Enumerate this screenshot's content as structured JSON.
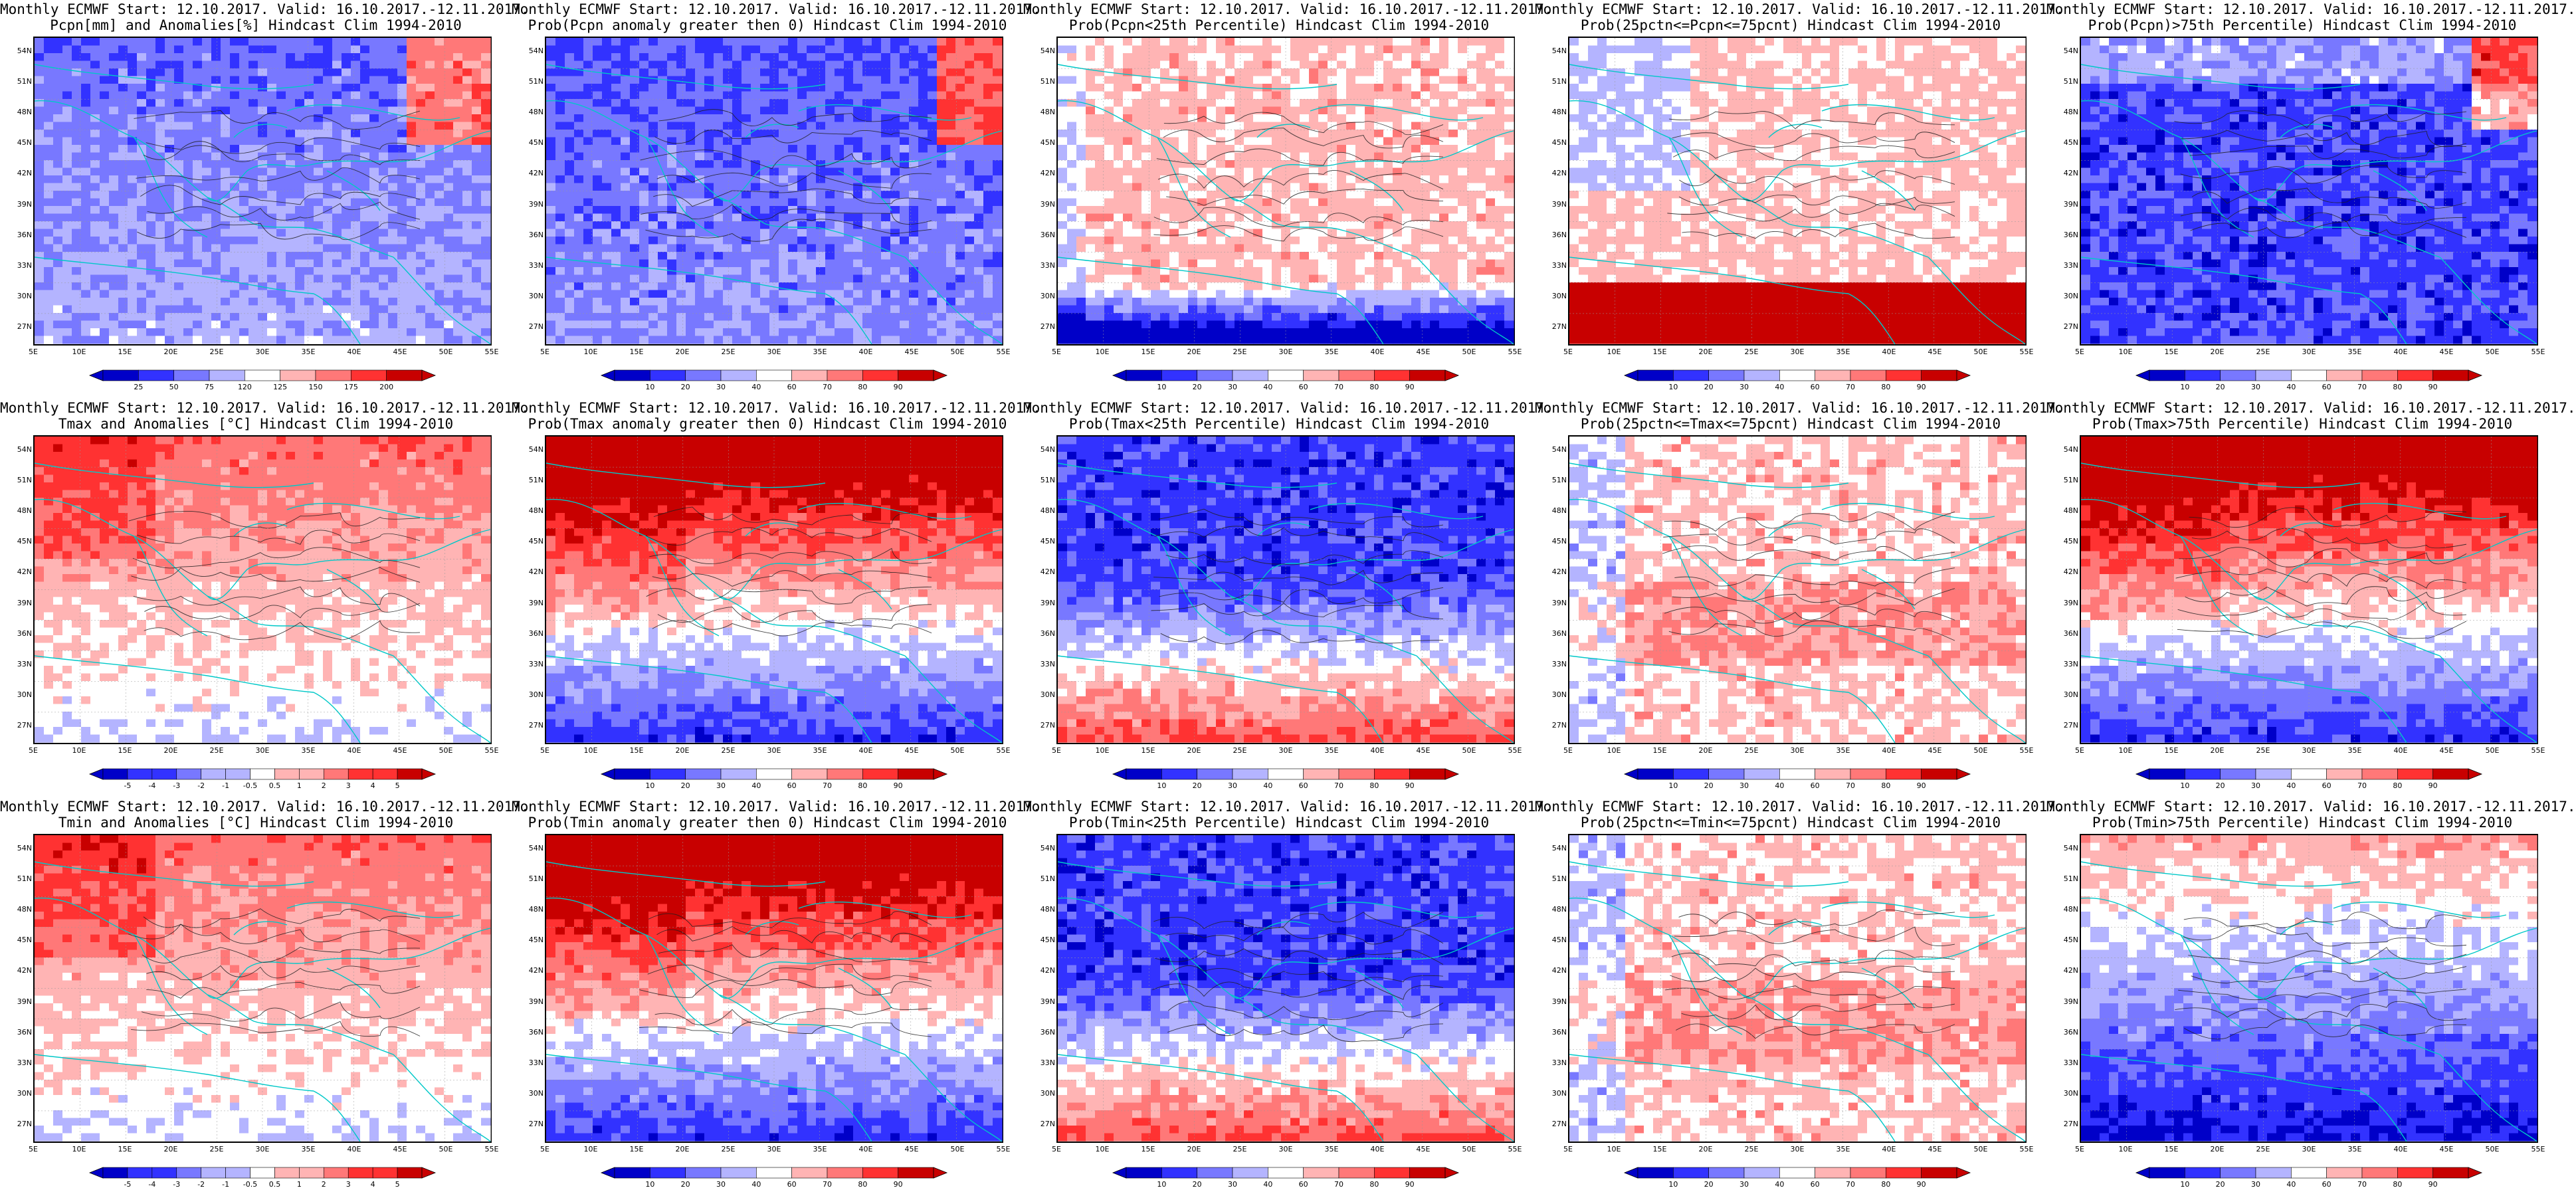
{
  "rows": [
    {
      "colorbar_labels": [
        [
          "25",
          "50",
          "75",
          "120",
          "125",
          "150",
          "175",
          "200"
        ],
        [
          "10",
          "20",
          "30",
          "40",
          "60",
          "70",
          "80",
          "90"
        ],
        [
          "10",
          "20",
          "30",
          "40",
          "60",
          "70",
          "80",
          "90"
        ],
        [
          "10",
          "20",
          "30",
          "40",
          "60",
          "70",
          "80",
          "90"
        ],
        [
          "10",
          "20",
          "30",
          "40",
          "60",
          "70",
          "80",
          "90"
        ]
      ],
      "panels": [
        {
          "title1": "Monthly ECMWF Start: 12.10.2017. Valid: 16.10.2017.-12.11.2017.",
          "title2": "Pcpn[mm] and Anomalies[%]",
          "title2b": "Hindcast Clim 1994-2010",
          "scheme": "pcpn_anom",
          "seed": 11
        },
        {
          "title1": "Monthly ECMWF Start: 12.10.2017. Valid: 16.10.2017.-12.11.2017.",
          "title2": "Prob(Pcpn anomaly greater then 0)",
          "title2b": "Hindcast Clim 1994-2010",
          "scheme": "blue_heavy",
          "seed": 12
        },
        {
          "title1": "Monthly ECMWF Start: 12.10.2017. Valid: 16.10.2017.-12.11.2017.",
          "title2": "Prob(Pcpn<25th Percentile)",
          "title2b": "Hindcast Clim 1994-2010",
          "scheme": "white_mixed",
          "seed": 13
        },
        {
          "title1": "Monthly ECMWF Start: 12.10.2017. Valid: 16.10.2017.-12.11.2017.",
          "title2": "Prob(25pctn<=Pcpn<=75pcnt)",
          "title2b": "Hindcast Clim 1994-2010",
          "scheme": "white_redsouth",
          "seed": 14
        },
        {
          "title1": "Monthly ECMWF Start: 12.10.2017. Valid: 16.10.2017.-12.11.2017.",
          "title2": "Prob(Pcpn)>75th Percentile)",
          "title2b": "Hindcast Clim 1994-2010",
          "scheme": "blue_deep",
          "seed": 15
        }
      ]
    },
    {
      "colorbar_labels": [
        [
          "-5",
          "-4",
          "-3",
          "-2",
          "-1",
          "-0.5",
          "0.5",
          "1",
          "2",
          "3",
          "4",
          "5"
        ],
        [
          "10",
          "20",
          "30",
          "40",
          "60",
          "70",
          "80",
          "90"
        ],
        [
          "10",
          "20",
          "30",
          "40",
          "60",
          "70",
          "80",
          "90"
        ],
        [
          "10",
          "20",
          "30",
          "40",
          "60",
          "70",
          "80",
          "90"
        ],
        [
          "10",
          "20",
          "30",
          "40",
          "60",
          "70",
          "80",
          "90"
        ]
      ],
      "panels": [
        {
          "title1": "Monthly ECMWF Start: 12.10.2017. Valid: 16.10.2017.-12.11.2017.",
          "title2": "Tmax and Anomalies [°C]",
          "title2b": "Hindcast Clim 1994-2010",
          "scheme": "red_north_light",
          "seed": 21
        },
        {
          "title1": "Monthly ECMWF Start: 12.10.2017. Valid: 16.10.2017.-12.11.2017.",
          "title2": "Prob(Tmax anomaly greater then 0)",
          "title2b": "Hindcast Clim 1994-2010",
          "scheme": "red_north_blue_south",
          "seed": 22
        },
        {
          "title1": "Monthly ECMWF Start: 12.10.2017. Valid: 16.10.2017.-12.11.2017.",
          "title2": "Prob(Tmax<25th Percentile)",
          "title2b": "Hindcast Clim 1994-2010",
          "scheme": "blue_north_red_south",
          "seed": 23
        },
        {
          "title1": "Monthly ECMWF Start: 12.10.2017. Valid: 16.10.2017.-12.11.2017.",
          "title2": "Prob(25pctn<=Tmax<=75pcnt)",
          "title2b": "Hindcast Clim 1994-2010",
          "scheme": "mixed_light",
          "seed": 24
        },
        {
          "title1": "Monthly ECMWF Start: 12.10.2017. Valid: 16.10.2017.-12.11.2017.",
          "title2": "Prob(Tmax>75th Percentile)",
          "title2b": "Hindcast Clim 1994-2010",
          "scheme": "red_north_blue_south",
          "seed": 25
        }
      ]
    },
    {
      "colorbar_labels": [
        [
          "-5",
          "-4",
          "-3",
          "-2",
          "-1",
          "-0.5",
          "0.5",
          "1",
          "2",
          "3",
          "4",
          "5"
        ],
        [
          "10",
          "20",
          "30",
          "40",
          "60",
          "70",
          "80",
          "90"
        ],
        [
          "10",
          "20",
          "30",
          "40",
          "60",
          "70",
          "80",
          "90"
        ],
        [
          "10",
          "20",
          "30",
          "40",
          "60",
          "70",
          "80",
          "90"
        ],
        [
          "10",
          "20",
          "30",
          "40",
          "60",
          "70",
          "80",
          "90"
        ]
      ],
      "panels": [
        {
          "title1": "Monthly ECMWF Start: 12.10.2017. Valid: 16.10.2017.-12.11.2017.",
          "title2": "Tmin and Anomalies [°C]",
          "title2b": "Hindcast Clim 1994-2010",
          "scheme": "red_north_light",
          "seed": 31
        },
        {
          "title1": "Monthly ECMWF Start: 12.10.2017. Valid: 16.10.2017.-12.11.2017.",
          "title2": "Prob(Tmin anomaly greater then 0)",
          "title2b": "Hindcast Clim 1994-2010",
          "scheme": "red_north_blue_south",
          "seed": 32
        },
        {
          "title1": "Monthly ECMWF Start: 12.10.2017. Valid: 16.10.2017.-12.11.2017.",
          "title2": "Prob(Tmin<25th Percentile)",
          "title2b": "Hindcast Clim 1994-2010",
          "scheme": "blue_north_red_south",
          "seed": 33
        },
        {
          "title1": "Monthly ECMWF Start: 12.10.2017. Valid: 16.10.2017.-12.11.2017.",
          "title2": "Prob(25pctn<=Tmin<=75pcnt)",
          "title2b": "Hindcast Clim 1994-2010",
          "scheme": "mixed_light",
          "seed": 34
        },
        {
          "title1": "Monthly ECMWF Start: 12.10.2017. Valid: 16.10.2017.-12.11.2017.",
          "title2": "Prob(Tmin>75th Percentile)",
          "title2b": "Hindcast Clim 1994-2010",
          "scheme": "blue_deep_south",
          "seed": 35
        }
      ]
    }
  ],
  "lat_labels": [
    "54N",
    "51N",
    "48N",
    "45N",
    "42N",
    "39N",
    "36N",
    "33N",
    "30N",
    "27N"
  ],
  "lon_labels": [
    "5E",
    "10E",
    "15E",
    "20E",
    "25E",
    "30E",
    "35E",
    "40E",
    "45E",
    "50E",
    "55E"
  ],
  "colors": {
    "prob_scale": [
      "#0000c8",
      "#3232ff",
      "#7878ff",
      "#b4b4ff",
      "#ffffff",
      "#ffb4b4",
      "#ff7878",
      "#ff3232",
      "#c80000"
    ],
    "coast": "#00c8c8",
    "contour": "#202020"
  }
}
